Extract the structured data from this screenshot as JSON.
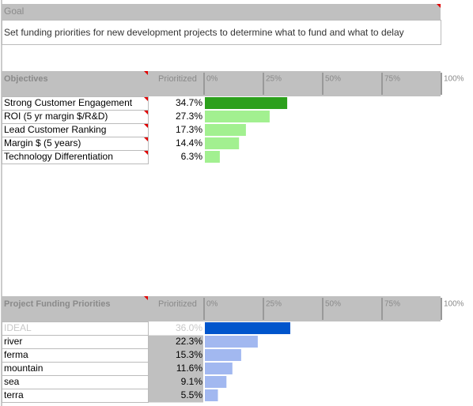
{
  "goal": {
    "header": "Goal",
    "text": "Set funding priorities for new development projects to determine what to fund and what to delay"
  },
  "objectives": {
    "header": "Objectives",
    "value_header": "Prioritized",
    "xlim": [
      0,
      100
    ],
    "xticks": [
      {
        "value": 0,
        "label": "0%"
      },
      {
        "value": 25,
        "label": "25%"
      },
      {
        "value": 50,
        "label": "50%"
      },
      {
        "value": 75,
        "label": "75%"
      },
      {
        "value": 100,
        "label": "100%"
      }
    ],
    "categories": [
      "Strong Customer Engagement",
      "ROI (5 yr margin $/R&D)",
      "Lead Customer Ranking",
      "Margin $ (5 years)",
      "Technology Differentiation"
    ],
    "values": [
      34.7,
      27.3,
      17.3,
      14.4,
      6.3
    ],
    "value_labels": [
      "34.7%",
      "27.3%",
      "17.3%",
      "14.4%",
      "6.3%"
    ],
    "colors": [
      "#2ca01c",
      "#a2f090",
      "#a2f090",
      "#a2f090",
      "#a2f090"
    ]
  },
  "projects": {
    "header": "Project Funding Priorities",
    "value_header": "Prioritized",
    "xlim": [
      0,
      100
    ],
    "xticks": [
      {
        "value": 0,
        "label": "0%"
      },
      {
        "value": 25,
        "label": "25%"
      },
      {
        "value": 50,
        "label": "50%"
      },
      {
        "value": 75,
        "label": "75%"
      },
      {
        "value": 100,
        "label": "100%"
      }
    ],
    "categories": [
      "IDEAL",
      "river",
      "ferma",
      "mountain",
      "sea",
      "terra"
    ],
    "values": [
      36.0,
      22.3,
      15.3,
      11.6,
      9.1,
      5.5
    ],
    "value_labels": [
      "36.0%",
      "22.3%",
      "15.3%",
      "11.6%",
      "9.1%",
      "5.5%"
    ],
    "colors": [
      "#0055cc",
      "#a2b8f0",
      "#a2b8f0",
      "#a2b8f0",
      "#a2b8f0",
      "#a2b8f0"
    ]
  }
}
